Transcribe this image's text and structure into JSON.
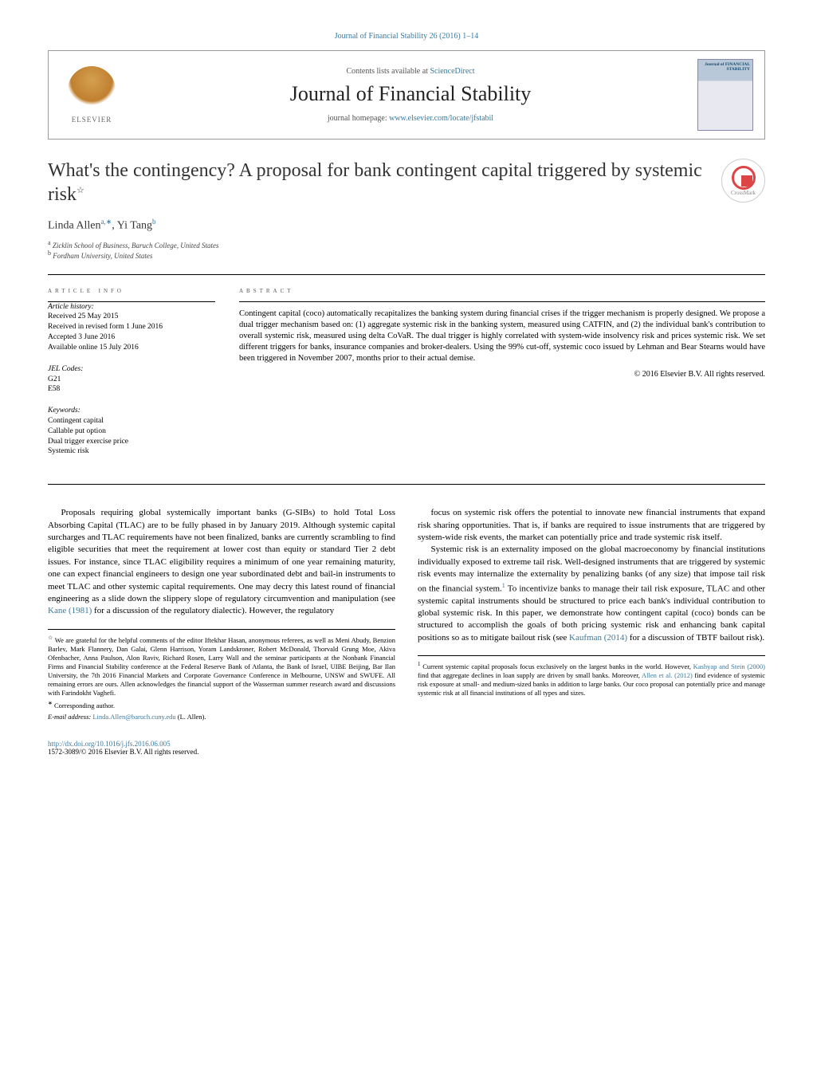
{
  "top_link": "Journal of Financial Stability 26 (2016) 1–14",
  "header": {
    "contents_prefix": "Contents lists available at ",
    "contents_link": "ScienceDirect",
    "journal_name": "Journal of Financial Stability",
    "homepage_prefix": "journal homepage: ",
    "homepage_link": "www.elsevier.com/locate/jfstabil",
    "publisher_label": "ELSEVIER",
    "cover_title": "Journal of FINANCIAL STABILITY"
  },
  "crossmark_label": "CrossMark",
  "title": "What's the contingency? A proposal for bank contingent capital triggered by systemic risk",
  "title_star": "☆",
  "authors_line_html": "Linda Allen<sup>a,∗</sup>, Yi Tang<sup>b</sup>",
  "affiliations": [
    {
      "sup": "a",
      "text": "Zicklin School of Business, Baruch College, United States"
    },
    {
      "sup": "b",
      "text": "Fordham University, United States"
    }
  ],
  "info": {
    "section_label": "article info",
    "history_label": "Article history:",
    "history": [
      "Received 25 May 2015",
      "Received in revised form 1 June 2016",
      "Accepted 3 June 2016",
      "Available online 15 July 2016"
    ],
    "jel_label": "JEL Codes:",
    "jel": [
      "G21",
      "E58"
    ],
    "keywords_label": "Keywords:",
    "keywords": [
      "Contingent capital",
      "Callable put option",
      "Dual trigger exercise price",
      "Systemic risk"
    ]
  },
  "abstract": {
    "section_label": "abstract",
    "text": "Contingent capital (coco) automatically recapitalizes the banking system during financial crises if the trigger mechanism is properly designed. We propose a dual trigger mechanism based on: (1) aggregate systemic risk in the banking system, measured using CATFIN, and (2) the individual bank's contribution to overall systemic risk, measured using delta CoVaR. The dual trigger is highly correlated with system-wide insolvency risk and prices systemic risk. We set different triggers for banks, insurance companies and broker-dealers. Using the 99% cut-off, systemic coco issued by Lehman and Bear Stearns would have been triggered in November 2007, months prior to their actual demise.",
    "copyright": "© 2016 Elsevier B.V. All rights reserved."
  },
  "body": {
    "p1": "Proposals requiring global systemically important banks (G-SIBs) to hold Total Loss Absorbing Capital (TLAC) are to be fully phased in by January 2019. Although systemic capital surcharges and TLAC requirements have not been finalized, banks are currently scrambling to find eligible securities that meet the requirement at lower cost than equity or standard Tier 2 debt issues. For instance, since TLAC eligibility requires a minimum of one year remaining maturity, one can expect financial engineers to design one year subordinated debt and bail-in instruments to meet TLAC and other systemic capital requirements. One may decry this latest round of financial engineering as a slide down the slippery slope of regulatory circumvention and manipulation (see ",
    "p1_ref": "Kane (1981)",
    "p1_tail": " for a discussion of the regulatory dialectic). However, the regulatory",
    "p2": "focus on systemic risk offers the potential to innovate new financial instruments that expand risk sharing opportunities. That is, if banks are required to issue instruments that are triggered by system-wide risk events, the market can potentially price and trade systemic risk itself.",
    "p3_a": "Systemic risk is an externality imposed on the global macroeconomy by financial institutions individually exposed to extreme tail risk. Well-designed instruments that are triggered by systemic risk events may internalize the externality by penalizing banks (of any size) that impose tail risk on the financial system.",
    "p3_fn": "1",
    "p3_b": " To incentivize banks to manage their tail risk exposure, TLAC and other systemic capital instruments should be structured to price each bank's individual contribution to global systemic risk. In this paper, we demonstrate how contingent capital (coco) bonds can be structured to accomplish the goals of both pricing systemic risk and enhancing bank capital positions so as to mitigate bailout risk (see ",
    "p3_ref": "Kaufman (2014)",
    "p3_c": " for a discussion of TBTF bailout risk)."
  },
  "left_footnotes": {
    "star": "☆",
    "star_text": " We are grateful for the helpful comments of the editor Iftekhar Hasan, anonymous referees, as well as Meni Abudy, Benzion Barlev, Mark Flannery, Dan Galai, Glenn Harrison, Yoram Landskroner, Robert McDonald, Thorvald Grung Moe, Akiva Ofenbacher, Anna Paulson, Alon Raviv, Richard Rosen, Larry Wall and the seminar participants at the Nonbank Financial Firms and Financial Stability conference at the Federal Reserve Bank of Atlanta, the Bank of Israel, UIBE Beijing, Bar Ilan University, the 7th 2016 Financial Markets and Corporate Governance Conference in Melbourne, UNSW and SWUFE. All remaining errors are ours. Allen acknowledges the financial support of the Wasserman summer research award and discussions with Farindokht Vaghefi.",
    "corr_sym": "∗",
    "corr_text": " Corresponding author.",
    "email_label": "E-mail address: ",
    "email": "Linda.Allen@baruch.cuny.edu",
    "email_suffix": " (L. Allen)."
  },
  "right_footnotes": {
    "fn1_sym": "1",
    "fn1_a": " Current systemic capital proposals focus exclusively on the largest banks in the world. However, ",
    "fn1_ref1": "Kashyap and Stein (2000)",
    "fn1_b": " find that aggregate declines in loan supply are driven by small banks. Moreover, ",
    "fn1_ref2": "Allen et al. (2012)",
    "fn1_c": " find evidence of systemic risk exposure at small- and medium-sized banks in addition to large banks. Our coco proposal can potentially price and manage systemic risk at all financial institutions of all types and sizes."
  },
  "footer": {
    "doi_url": "http://dx.doi.org/10.1016/j.jfs.2016.06.005",
    "issn_line": "1572-3089/© 2016 Elsevier B.V. All rights reserved."
  },
  "colors": {
    "link": "#3b7a9e",
    "text": "#000000",
    "muted": "#555555",
    "rule": "#000000"
  }
}
